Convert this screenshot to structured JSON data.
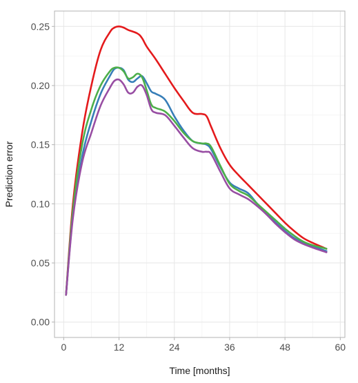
{
  "chart_data": {
    "type": "line",
    "title": "",
    "xlabel": "Time [months]",
    "ylabel": "Prediction error",
    "xlim": [
      -2,
      61
    ],
    "ylim": [
      -0.013,
      0.263
    ],
    "x_ticks": [
      0,
      12,
      24,
      36,
      48,
      60
    ],
    "x_tick_labels": [
      "0",
      "12",
      "24",
      "36",
      "48",
      "60"
    ],
    "y_ticks": [
      0.0,
      0.05,
      0.1,
      0.15,
      0.2,
      0.25
    ],
    "y_tick_labels": [
      "0.00",
      "0.05",
      "0.10",
      "0.15",
      "0.20",
      "0.25"
    ],
    "grid": true,
    "legend": "none",
    "background": "#ffffff",
    "panel_border_color": "#b3b3b3",
    "grid_major_color": "#e6e6e6",
    "grid_minor_color": "#f2f2f2",
    "series": [
      {
        "color": "#e41a1c",
        "x": [
          0.5,
          2,
          4,
          6,
          8,
          10,
          11,
          12,
          13,
          14,
          16,
          17,
          18,
          20,
          22,
          24,
          26,
          28,
          30,
          31,
          32,
          34,
          36,
          38,
          40,
          42,
          44,
          46,
          48,
          50,
          52,
          54,
          57
        ],
        "y": [
          0.023,
          0.1,
          0.16,
          0.2,
          0.23,
          0.245,
          0.249,
          0.25,
          0.249,
          0.247,
          0.244,
          0.24,
          0.233,
          0.222,
          0.21,
          0.198,
          0.187,
          0.177,
          0.176,
          0.174,
          0.165,
          0.147,
          0.133,
          0.124,
          0.116,
          0.108,
          0.1,
          0.092,
          0.084,
          0.077,
          0.071,
          0.067,
          0.062
        ]
      },
      {
        "color": "#377eb8",
        "x": [
          0.5,
          2,
          4,
          6,
          8,
          10,
          11,
          12,
          13,
          14,
          15,
          16,
          17,
          18,
          19,
          20,
          22,
          24,
          26,
          28,
          30,
          31,
          32,
          34,
          36,
          38,
          40,
          42,
          44,
          46,
          48,
          50,
          52,
          54,
          57
        ],
        "y": [
          0.023,
          0.09,
          0.14,
          0.17,
          0.193,
          0.208,
          0.214,
          0.215,
          0.213,
          0.205,
          0.203,
          0.206,
          0.208,
          0.202,
          0.195,
          0.193,
          0.188,
          0.174,
          0.162,
          0.153,
          0.151,
          0.15,
          0.146,
          0.131,
          0.118,
          0.113,
          0.109,
          0.1,
          0.092,
          0.084,
          0.077,
          0.071,
          0.067,
          0.064,
          0.06
        ]
      },
      {
        "color": "#4daf4a",
        "x": [
          0.5,
          2,
          4,
          6,
          8,
          10,
          11,
          12,
          13,
          14,
          15,
          16,
          17,
          18,
          19,
          20,
          22,
          24,
          26,
          28,
          30,
          31,
          32,
          34,
          36,
          38,
          40,
          42,
          44,
          46,
          48,
          50,
          52,
          54,
          57
        ],
        "y": [
          0.023,
          0.095,
          0.15,
          0.18,
          0.2,
          0.212,
          0.215,
          0.215,
          0.212,
          0.206,
          0.207,
          0.21,
          0.207,
          0.196,
          0.184,
          0.181,
          0.178,
          0.17,
          0.16,
          0.153,
          0.151,
          0.151,
          0.148,
          0.132,
          0.117,
          0.111,
          0.107,
          0.1,
          0.093,
          0.086,
          0.079,
          0.073,
          0.068,
          0.065,
          0.062
        ]
      },
      {
        "color": "#984ea3",
        "x": [
          0.5,
          2,
          4,
          6,
          8,
          10,
          11,
          12,
          13,
          14,
          15,
          16,
          17,
          18,
          19,
          20,
          22,
          24,
          26,
          28,
          30,
          31,
          32,
          34,
          36,
          38,
          40,
          42,
          44,
          46,
          48,
          50,
          52,
          54,
          57
        ],
        "y": [
          0.023,
          0.088,
          0.135,
          0.16,
          0.183,
          0.198,
          0.204,
          0.205,
          0.201,
          0.194,
          0.194,
          0.199,
          0.2,
          0.192,
          0.18,
          0.177,
          0.175,
          0.166,
          0.156,
          0.147,
          0.144,
          0.144,
          0.142,
          0.127,
          0.113,
          0.108,
          0.104,
          0.098,
          0.091,
          0.083,
          0.076,
          0.07,
          0.066,
          0.063,
          0.059
        ]
      }
    ]
  }
}
